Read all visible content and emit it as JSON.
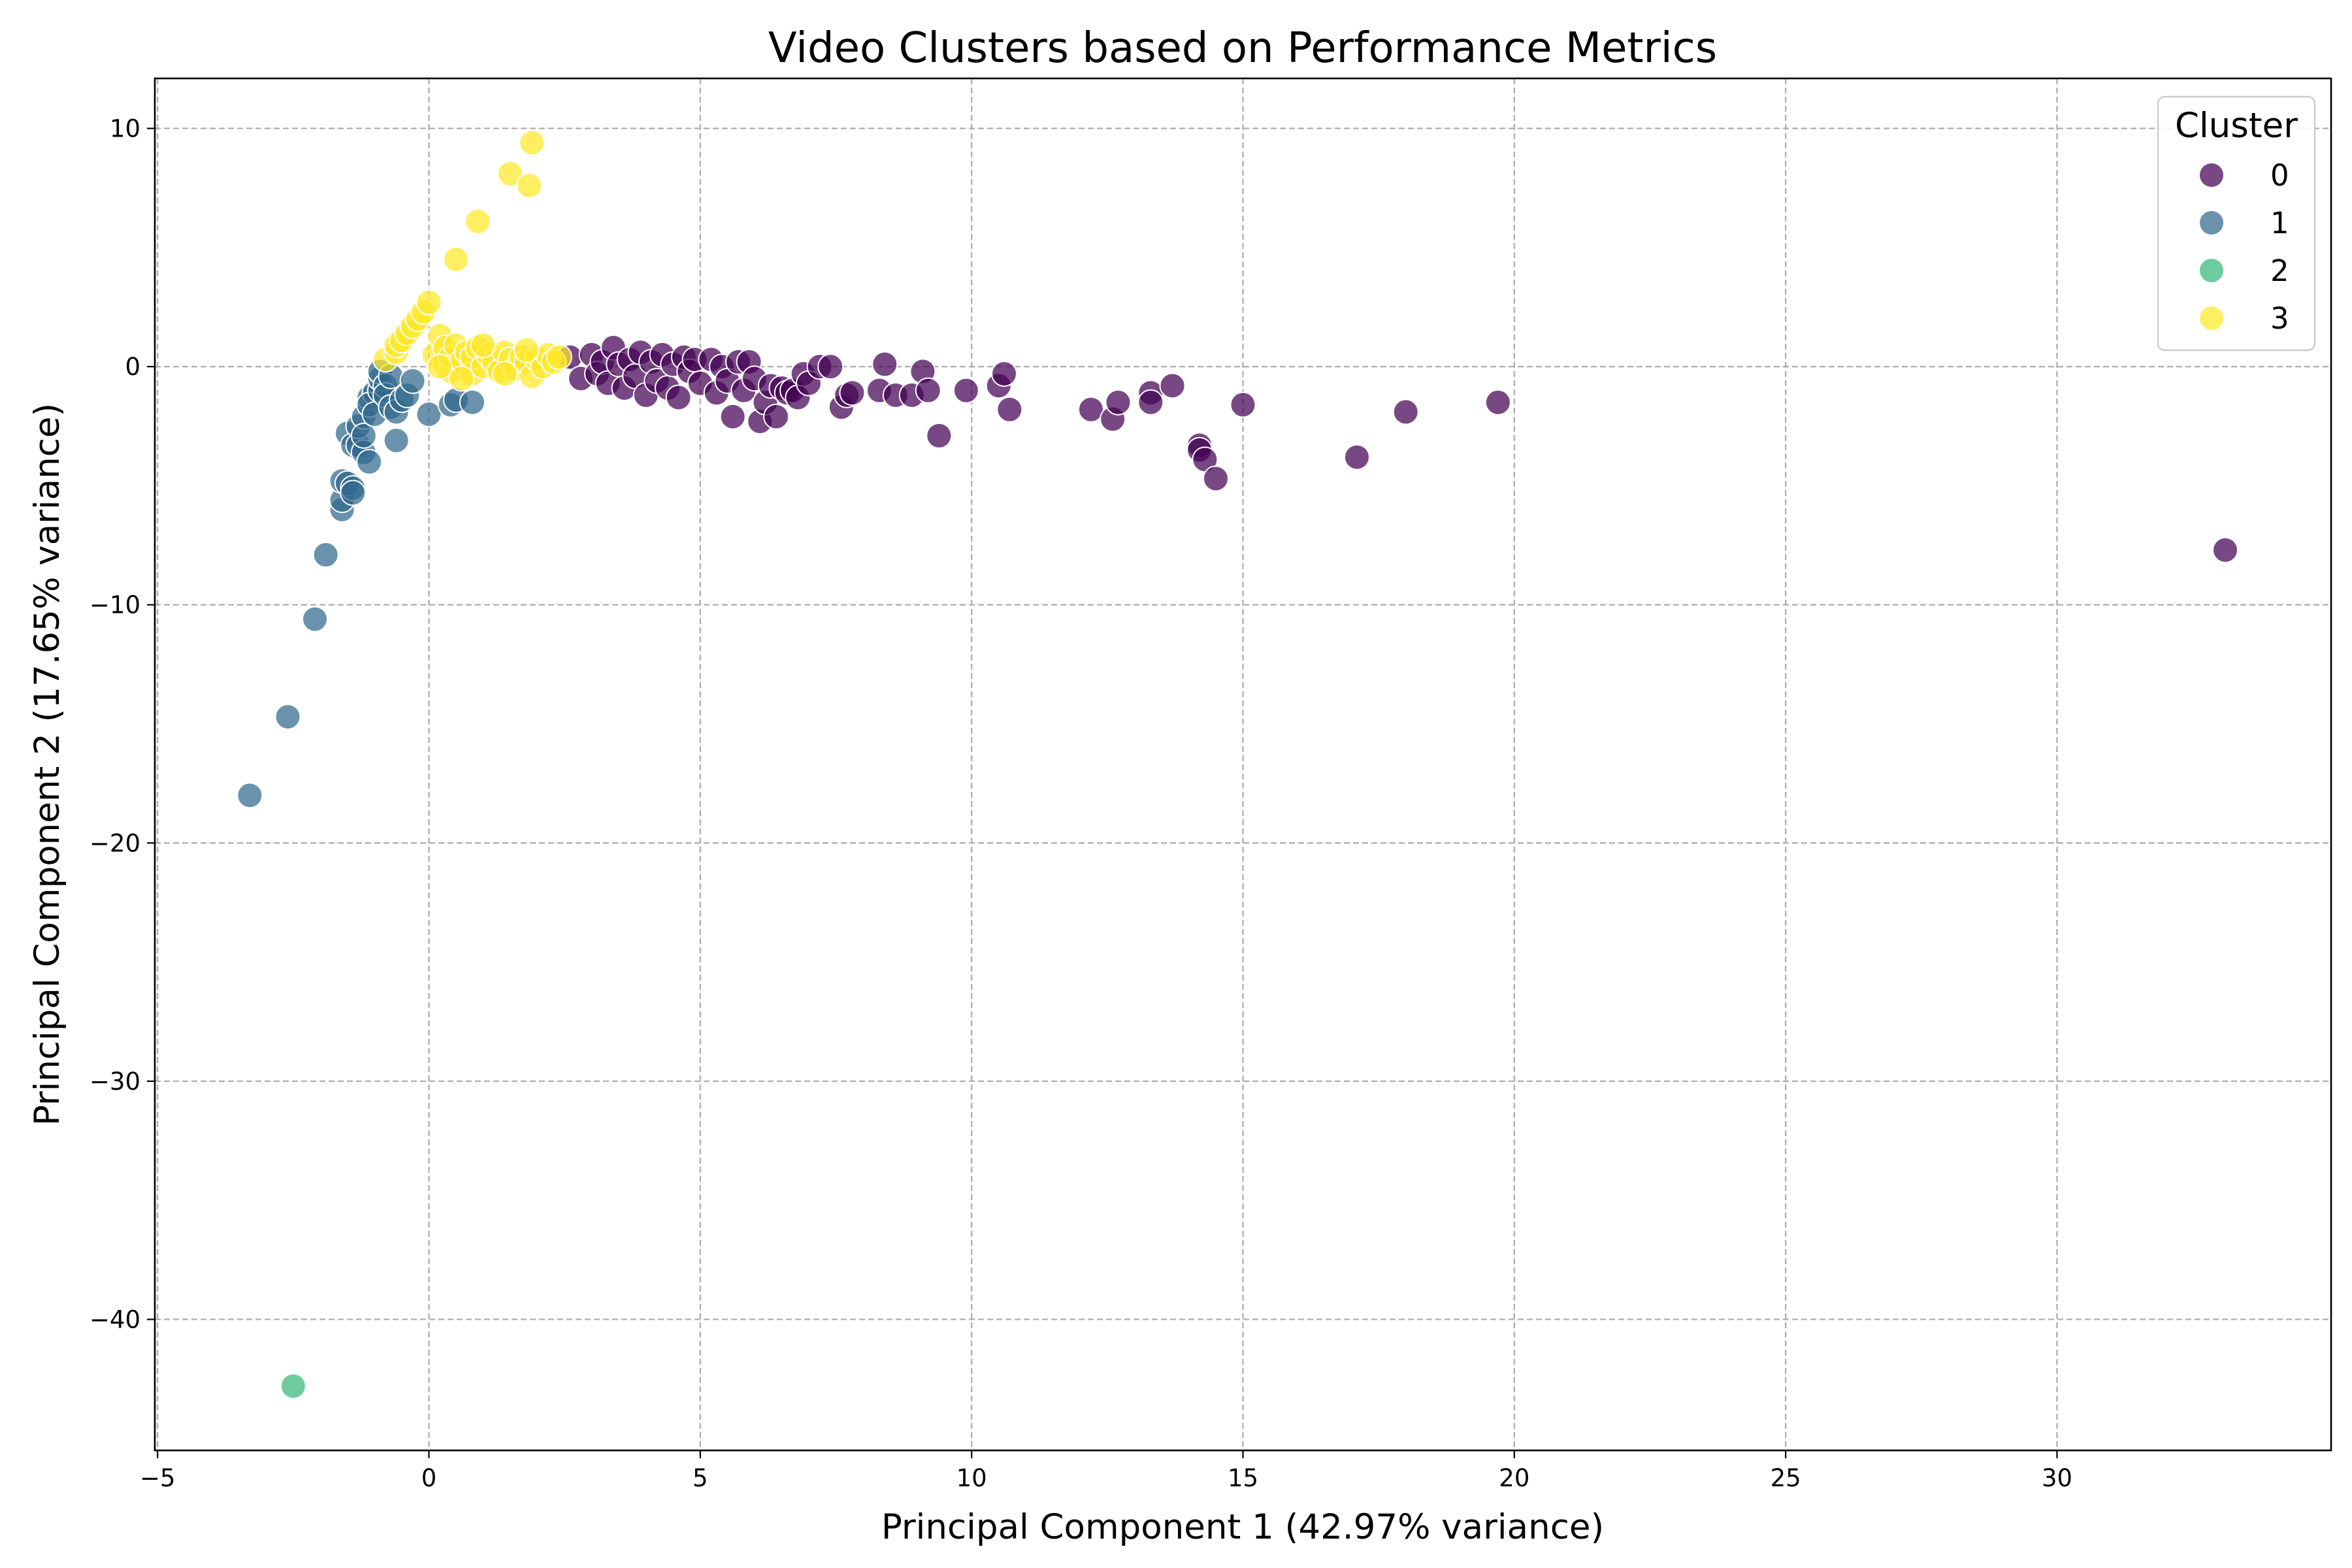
{
  "chart_data": {
    "type": "scatter",
    "title": "Video Clusters based on Performance Metrics",
    "xlabel": "Principal Component 1 (42.97% variance)",
    "ylabel": "Principal Component 2 (17.65% variance)",
    "xlim": [
      -5.05,
      35.05
    ],
    "ylim": [
      -45.5,
      12.1
    ],
    "xticks": [
      -5,
      0,
      5,
      10,
      15,
      20,
      25,
      30
    ],
    "yticks": [
      10,
      0,
      -10,
      -20,
      -30,
      -40
    ],
    "xtick_labels": [
      "−5",
      "0",
      "5",
      "10",
      "15",
      "20",
      "25",
      "30"
    ],
    "ytick_labels": [
      "10",
      "0",
      "−10",
      "−20",
      "−30",
      "−40"
    ],
    "grid": true,
    "legend": {
      "title": "Cluster",
      "placement": "top-right"
    },
    "series": [
      {
        "name": "0",
        "color": "#440154",
        "points": [
          [
            2.6,
            0.4
          ],
          [
            2.8,
            -0.5
          ],
          [
            3.0,
            0.5
          ],
          [
            3.1,
            -0.3
          ],
          [
            3.2,
            0.2
          ],
          [
            3.3,
            -0.7
          ],
          [
            3.4,
            0.8
          ],
          [
            3.5,
            0.1
          ],
          [
            3.6,
            -0.9
          ],
          [
            3.7,
            0.3
          ],
          [
            3.8,
            -0.4
          ],
          [
            3.9,
            0.6
          ],
          [
            4.0,
            -1.2
          ],
          [
            4.1,
            0.2
          ],
          [
            4.2,
            -0.6
          ],
          [
            4.3,
            0.5
          ],
          [
            4.4,
            -0.9
          ],
          [
            4.5,
            0.1
          ],
          [
            4.6,
            -1.3
          ],
          [
            4.7,
            0.4
          ],
          [
            4.8,
            -0.2
          ],
          [
            4.9,
            0.3
          ],
          [
            5.0,
            -0.7
          ],
          [
            5.2,
            0.3
          ],
          [
            5.3,
            -1.1
          ],
          [
            5.4,
            0.0
          ],
          [
            5.5,
            -0.6
          ],
          [
            5.6,
            -2.1
          ],
          [
            5.7,
            0.2
          ],
          [
            5.8,
            -1.0
          ],
          [
            5.9,
            0.2
          ],
          [
            6.0,
            -0.5
          ],
          [
            6.1,
            -2.3
          ],
          [
            6.2,
            -1.5
          ],
          [
            6.3,
            -0.8
          ],
          [
            6.4,
            -2.1
          ],
          [
            6.5,
            -0.9
          ],
          [
            6.6,
            -1.1
          ],
          [
            6.7,
            -1.0
          ],
          [
            6.8,
            -1.3
          ],
          [
            6.9,
            -0.3
          ],
          [
            7.0,
            -0.7
          ],
          [
            7.2,
            0.0
          ],
          [
            7.4,
            0.0
          ],
          [
            7.6,
            -1.7
          ],
          [
            7.7,
            -1.2
          ],
          [
            7.8,
            -1.1
          ],
          [
            8.3,
            -1.0
          ],
          [
            8.4,
            0.1
          ],
          [
            8.6,
            -1.2
          ],
          [
            8.9,
            -1.2
          ],
          [
            9.1,
            -0.2
          ],
          [
            9.2,
            -1.0
          ],
          [
            9.4,
            -2.9
          ],
          [
            9.9,
            -1.0
          ],
          [
            10.5,
            -0.8
          ],
          [
            10.6,
            -0.3
          ],
          [
            10.7,
            -1.8
          ],
          [
            12.2,
            -1.8
          ],
          [
            12.6,
            -2.2
          ],
          [
            12.7,
            -1.5
          ],
          [
            13.3,
            -1.1
          ],
          [
            13.3,
            -1.5
          ],
          [
            13.7,
            -0.8
          ],
          [
            14.2,
            -3.3
          ],
          [
            14.2,
            -3.5
          ],
          [
            14.3,
            -3.9
          ],
          [
            14.5,
            -4.7
          ],
          [
            15.0,
            -1.6
          ],
          [
            17.1,
            -3.8
          ],
          [
            18.0,
            -1.9
          ],
          [
            19.7,
            -1.5
          ],
          [
            33.1,
            -7.7
          ]
        ]
      },
      {
        "name": "1",
        "color": "#31688e",
        "points": [
          [
            -3.3,
            -18.0
          ],
          [
            -2.6,
            -14.7
          ],
          [
            -2.1,
            -10.6
          ],
          [
            -1.9,
            -7.9
          ],
          [
            -1.6,
            -6.0
          ],
          [
            -1.6,
            -5.6
          ],
          [
            -1.6,
            -4.8
          ],
          [
            -1.5,
            -4.9
          ],
          [
            -1.4,
            -5.1
          ],
          [
            -1.4,
            -5.3
          ],
          [
            -1.5,
            -2.8
          ],
          [
            -1.4,
            -3.3
          ],
          [
            -1.3,
            -3.3
          ],
          [
            -1.3,
            -2.5
          ],
          [
            -1.2,
            -2.1
          ],
          [
            -1.2,
            -3.6
          ],
          [
            -1.2,
            -2.9
          ],
          [
            -1.1,
            -4.0
          ],
          [
            -1.1,
            -1.3
          ],
          [
            -1.0,
            -1.1
          ],
          [
            -1.1,
            -1.6
          ],
          [
            -1.0,
            -2.0
          ],
          [
            -0.9,
            -1.0
          ],
          [
            -0.9,
            -0.5
          ],
          [
            -0.9,
            -0.2
          ],
          [
            -0.8,
            -0.8
          ],
          [
            -0.8,
            -1.2
          ],
          [
            -0.7,
            -0.4
          ],
          [
            -0.7,
            -1.7
          ],
          [
            -0.6,
            -3.1
          ],
          [
            -0.6,
            -1.9
          ],
          [
            -0.5,
            -1.4
          ],
          [
            -0.4,
            -1.2
          ],
          [
            -0.3,
            -0.6
          ],
          [
            0.0,
            -2.0
          ],
          [
            0.4,
            -1.6
          ],
          [
            0.5,
            -1.4
          ],
          [
            0.8,
            -1.5
          ]
        ]
      },
      {
        "name": "2",
        "color": "#35b779",
        "points": [
          [
            -2.5,
            -42.8
          ]
        ]
      },
      {
        "name": "3",
        "color": "#fde725",
        "points": [
          [
            -0.8,
            0.3
          ],
          [
            -0.6,
            0.6
          ],
          [
            -0.6,
            0.9
          ],
          [
            -0.5,
            1.1
          ],
          [
            -0.4,
            1.4
          ],
          [
            -0.3,
            1.7
          ],
          [
            -0.2,
            2.0
          ],
          [
            -0.1,
            2.3
          ],
          [
            0.0,
            2.7
          ],
          [
            0.1,
            0.5
          ],
          [
            0.2,
            1.3
          ],
          [
            0.3,
            0.1
          ],
          [
            0.3,
            0.8
          ],
          [
            0.4,
            -0.2
          ],
          [
            0.4,
            0.4
          ],
          [
            0.5,
            4.5
          ],
          [
            0.5,
            0.9
          ],
          [
            0.6,
            0.2
          ],
          [
            0.7,
            0.6
          ],
          [
            0.8,
            -0.3
          ],
          [
            0.8,
            0.4
          ],
          [
            0.9,
            6.1
          ],
          [
            0.9,
            0.8
          ],
          [
            1.0,
            0.0
          ],
          [
            1.1,
            0.5
          ],
          [
            1.2,
            0.2
          ],
          [
            1.3,
            -0.2
          ],
          [
            1.4,
            0.6
          ],
          [
            1.5,
            8.1
          ],
          [
            1.5,
            0.3
          ],
          [
            1.6,
            -0.1
          ],
          [
            1.7,
            0.4
          ],
          [
            1.8,
            0.2
          ],
          [
            1.9,
            9.4
          ],
          [
            1.85,
            7.6
          ],
          [
            1.9,
            -0.4
          ],
          [
            2.0,
            0.3
          ],
          [
            2.1,
            0.0
          ],
          [
            2.2,
            0.5
          ],
          [
            2.3,
            0.2
          ],
          [
            2.4,
            0.4
          ],
          [
            0.2,
            0.0
          ],
          [
            0.6,
            -0.5
          ],
          [
            1.0,
            0.9
          ],
          [
            1.4,
            -0.3
          ],
          [
            1.8,
            0.7
          ]
        ]
      }
    ]
  }
}
